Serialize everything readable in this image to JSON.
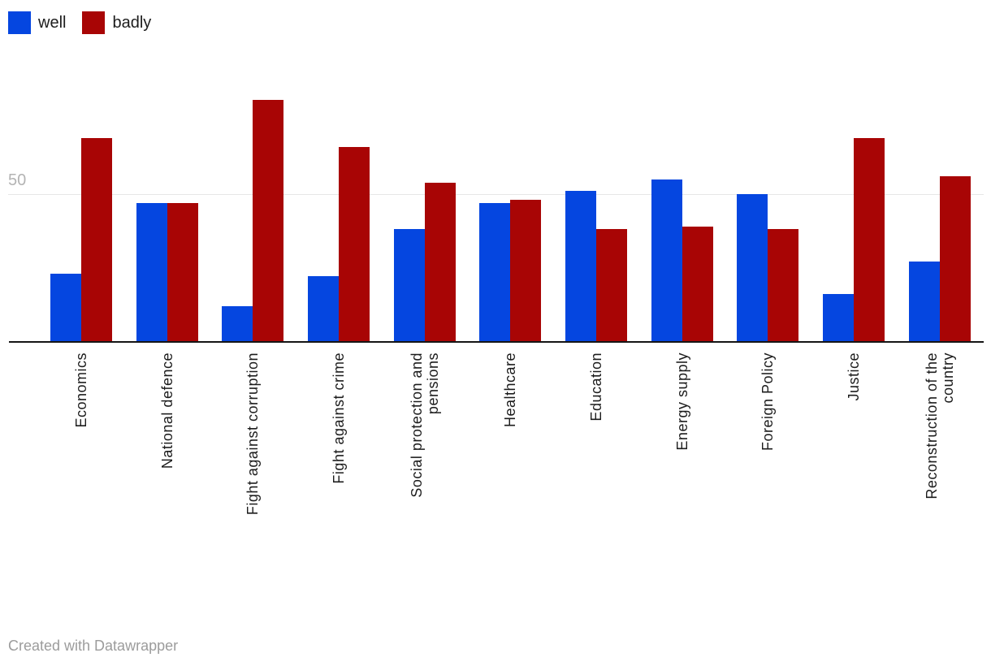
{
  "chart_data": {
    "type": "bar",
    "title": "",
    "xlabel": "",
    "ylabel": "",
    "yticks": [
      50
    ],
    "ytick_labels": [
      "50"
    ],
    "ylim": [
      0,
      100
    ],
    "grid": "single horizontal gridline at 50",
    "legend_position": "top-left",
    "categories": [
      "Economics",
      "National defence",
      "Fight against corruption",
      "Fight against crime",
      "Social protection and pensions",
      "Healthcare",
      "Education",
      "Energy supply",
      "Foreign Policy",
      "Justice",
      "Reconstruction of the country"
    ],
    "category_lines": [
      [
        "Economics"
      ],
      [
        "National defence"
      ],
      [
        "Fight against corruption"
      ],
      [
        "Fight against crime"
      ],
      [
        "Social protection and",
        "pensions"
      ],
      [
        "Healthcare"
      ],
      [
        "Education"
      ],
      [
        "Energy supply"
      ],
      [
        "Foreign Policy"
      ],
      [
        "Justice"
      ],
      [
        "Reconstruction of the",
        "country"
      ]
    ],
    "series": [
      {
        "name": "well",
        "color": "#0546e0",
        "values": [
          23,
          47,
          12,
          22,
          38,
          47,
          51,
          55,
          50,
          16,
          27
        ]
      },
      {
        "name": "badly",
        "color": "#a80505",
        "values": [
          69,
          47,
          82,
          66,
          54,
          48,
          38,
          39,
          38,
          69,
          56
        ]
      }
    ]
  },
  "footer": {
    "credit": "Created with Datawrapper"
  }
}
